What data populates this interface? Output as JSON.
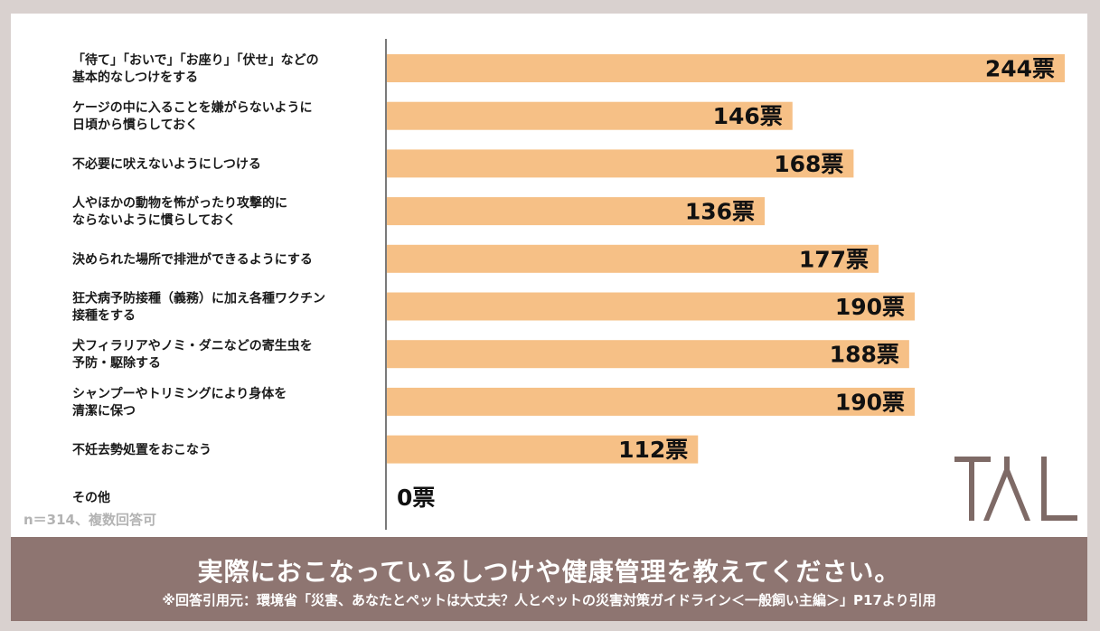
{
  "chart_data": {
    "type": "bar",
    "orientation": "horizontal",
    "title": "実際におこなっているしつけや健康管理を教えてください。",
    "categories": [
      [
        "「待て」「おいで」「お座り」「伏せ」などの",
        "基本的なしつけをする"
      ],
      [
        "ケージの中に入ることを嫌がらないように",
        "日頃から慣らしておく"
      ],
      [
        "不必要に吠えないようにしつける"
      ],
      [
        "人やほかの動物を怖がったり攻撃的に",
        "ならないように慣らしておく"
      ],
      [
        "決められた場所で排泄ができるようにする"
      ],
      [
        "狂犬病予防接種（義務）に加え各種ワクチン",
        "接種をする"
      ],
      [
        "犬フィラリアやノミ・ダニなどの寄生虫を",
        "予防・駆除する"
      ],
      [
        "シャンプーやトリミングにより身体を",
        "清潔に保つ"
      ],
      [
        "不妊去勢処置をおこなう"
      ],
      [
        "その他"
      ]
    ],
    "values": [
      244,
      146,
      168,
      136,
      177,
      190,
      188,
      190,
      112,
      0
    ],
    "value_labels": [
      "244票",
      "146票",
      "168票",
      "136票",
      "177票",
      "190票",
      "188票",
      "190票",
      "112票",
      "0票"
    ],
    "xlim": [
      0,
      244
    ],
    "grid": false,
    "bar_color": "#f6c086"
  },
  "note": "n＝314、複数回答可",
  "footer": {
    "title": "実際におこなっているしつけや健康管理を教えてください。",
    "source": "※回答引用元：環境省「災害、あなたとペットは大丈夫？人とペットの災害対策ガイドライン＜一般飼い主編＞」P17より引用"
  },
  "logo": {
    "icon": "tal-logo",
    "color": "#7e6a66"
  }
}
